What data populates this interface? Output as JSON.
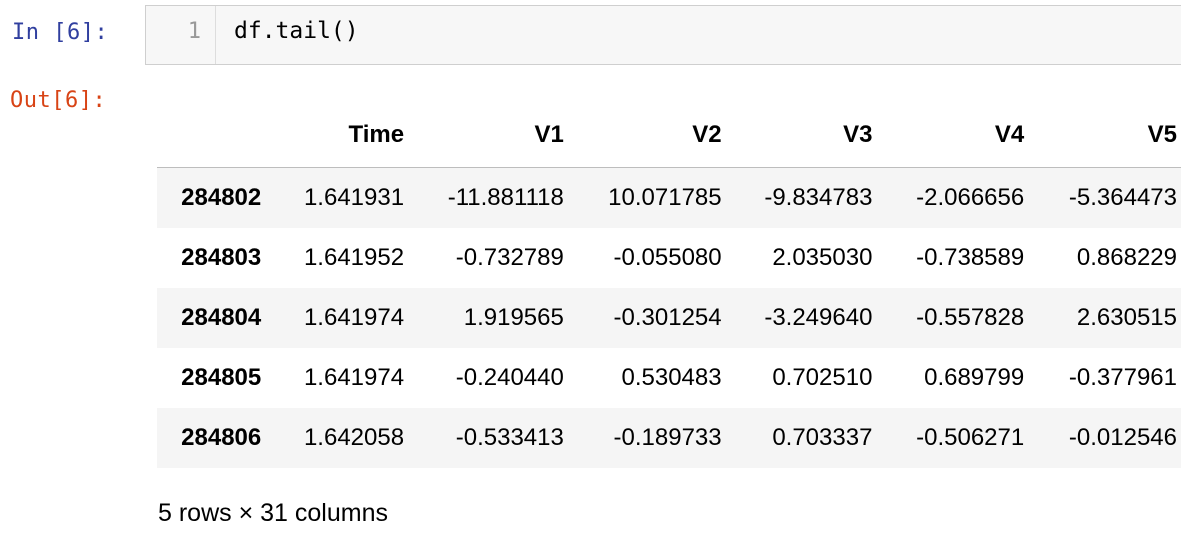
{
  "input_cell": {
    "prompt": "In [6]:",
    "line_number": "1",
    "code": "df.tail()"
  },
  "output_cell": {
    "prompt": "Out[6]:"
  },
  "dataframe": {
    "columns": [
      "Time",
      "V1",
      "V2",
      "V3",
      "V4",
      "V5"
    ],
    "rows": [
      {
        "index": "284802",
        "values": [
          "1.641931",
          "-11.881118",
          "10.071785",
          "-9.834783",
          "-2.066656",
          "-5.364473"
        ]
      },
      {
        "index": "284803",
        "values": [
          "1.641952",
          "-0.732789",
          "-0.055080",
          "2.035030",
          "-0.738589",
          "0.868229"
        ]
      },
      {
        "index": "284804",
        "values": [
          "1.641974",
          "1.919565",
          "-0.301254",
          "-3.249640",
          "-0.557828",
          "2.630515"
        ]
      },
      {
        "index": "284805",
        "values": [
          "1.641974",
          "-0.240440",
          "0.530483",
          "0.702510",
          "0.689799",
          "-0.377961"
        ]
      },
      {
        "index": "284806",
        "values": [
          "1.642058",
          "-0.533413",
          "-0.189733",
          "0.703337",
          "-0.506271",
          "-0.012546"
        ]
      }
    ],
    "shape_caption": "5 rows × 31 columns"
  },
  "colors": {
    "in_prompt": "#303f9f",
    "out_prompt": "#d84315",
    "input_background": "#f7f7f7",
    "striped_row": "#f5f5f5"
  }
}
